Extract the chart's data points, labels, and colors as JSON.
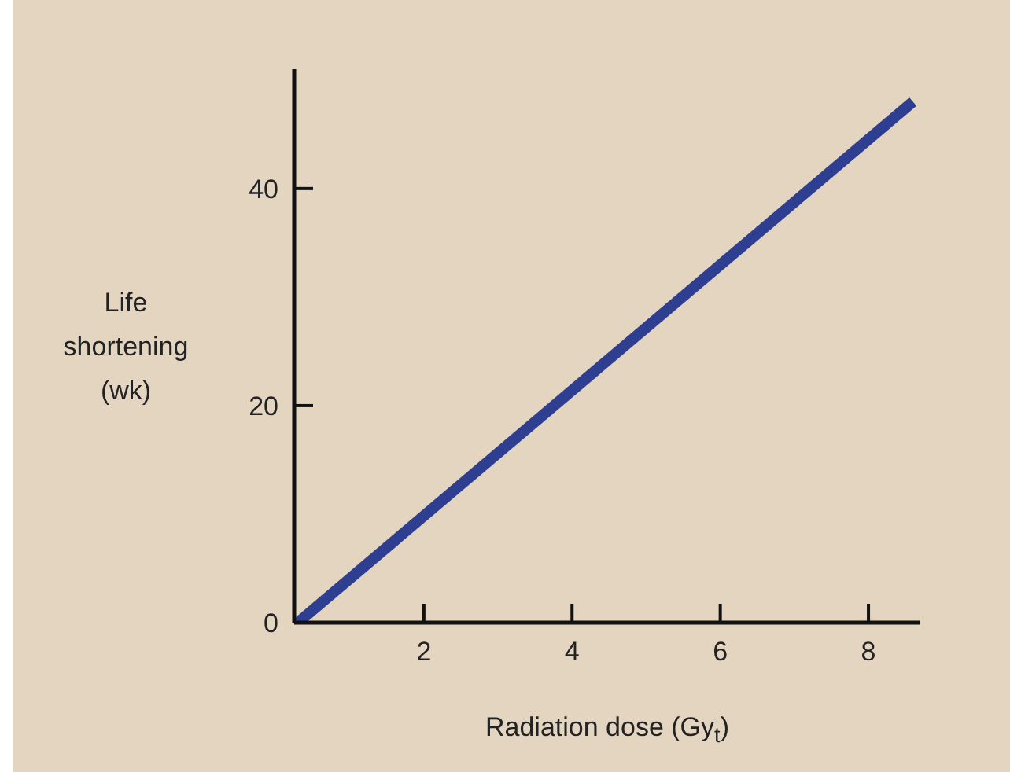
{
  "chart_data": {
    "type": "line",
    "xlabel": "Radiation dose (Gy$_{t}$)",
    "ylabel": "Life shortening (wk)",
    "x": [
      0.3,
      8.6
    ],
    "series": [
      {
        "color": "#2e3f92",
        "values": [
          0,
          48
        ]
      }
    ],
    "xlim": [
      0.25,
      8.7
    ],
    "xticks": [
      2,
      4,
      6,
      8
    ],
    "ylim": [
      0,
      51
    ],
    "yticks": [
      0,
      20,
      40
    ],
    "marker": "none",
    "line_style": "solid"
  }
}
